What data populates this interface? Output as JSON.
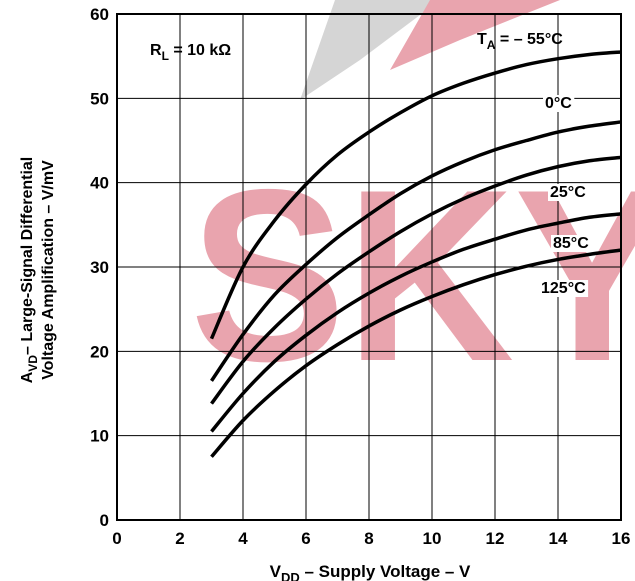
{
  "chart_data": {
    "type": "line",
    "xlabel_main": "V",
    "xlabel_sub": "DD",
    "xlabel_rest": " – Supply Voltage – V",
    "ylabel_line1_main": "A",
    "ylabel_line1_sub": "VD",
    "ylabel_line1_rest": "– Large-Signal Differential",
    "ylabel_line2": "Voltage Amplification – V/mV",
    "xlim": [
      0,
      16
    ],
    "ylim": [
      0,
      60
    ],
    "x_ticks": [
      0,
      2,
      4,
      6,
      8,
      10,
      12,
      14,
      16
    ],
    "y_ticks": [
      0,
      10,
      20,
      30,
      40,
      50,
      60
    ],
    "grid": true,
    "annotations": {
      "rl_main": "R",
      "rl_sub": "L",
      "rl_rest": " = 10 kΩ",
      "ta_main": "T",
      "ta_sub": "A",
      "ta_rest": " = – 55°C"
    },
    "series": [
      {
        "name": "– 55°C",
        "x": [
          3,
          4,
          5,
          6,
          7,
          8,
          9,
          10,
          11,
          12,
          13,
          14,
          15,
          16
        ],
        "y": [
          21.5,
          30,
          35.5,
          39.8,
          43.3,
          46,
          48.3,
          50.3,
          51.8,
          53,
          54,
          54.7,
          55.2,
          55.5
        ]
      },
      {
        "name": "0°C",
        "x": [
          3,
          4,
          5,
          6,
          7,
          8,
          9,
          10,
          11,
          12,
          13,
          14,
          15,
          16
        ],
        "y": [
          16.5,
          22,
          26.7,
          30.3,
          33.5,
          36.2,
          38.7,
          40.8,
          42.5,
          43.9,
          45,
          46,
          46.7,
          47.2
        ]
      },
      {
        "name": "25°C",
        "x": [
          3,
          4,
          5,
          6,
          7,
          8,
          9,
          10,
          11,
          12,
          13,
          14,
          15,
          16
        ],
        "y": [
          13.8,
          18.8,
          22.8,
          26.2,
          29.2,
          31.8,
          34.2,
          36.3,
          38.1,
          39.6,
          40.9,
          41.9,
          42.6,
          43
        ]
      },
      {
        "name": "85°C",
        "x": [
          3,
          4,
          5,
          6,
          7,
          8,
          9,
          10,
          11,
          12,
          13,
          14,
          15,
          16
        ],
        "y": [
          10.5,
          15,
          18.8,
          21.9,
          24.6,
          26.9,
          28.9,
          30.6,
          32.1,
          33.3,
          34.4,
          35.2,
          35.9,
          36.3
        ]
      },
      {
        "name": "125°C",
        "x": [
          3,
          4,
          5,
          6,
          7,
          8,
          9,
          10,
          11,
          12,
          13,
          14,
          15,
          16
        ],
        "y": [
          7.5,
          11.8,
          15.3,
          18.3,
          20.8,
          23,
          24.9,
          26.5,
          27.9,
          29.1,
          30.1,
          30.9,
          31.5,
          32
        ]
      }
    ],
    "watermark": "SKY"
  }
}
